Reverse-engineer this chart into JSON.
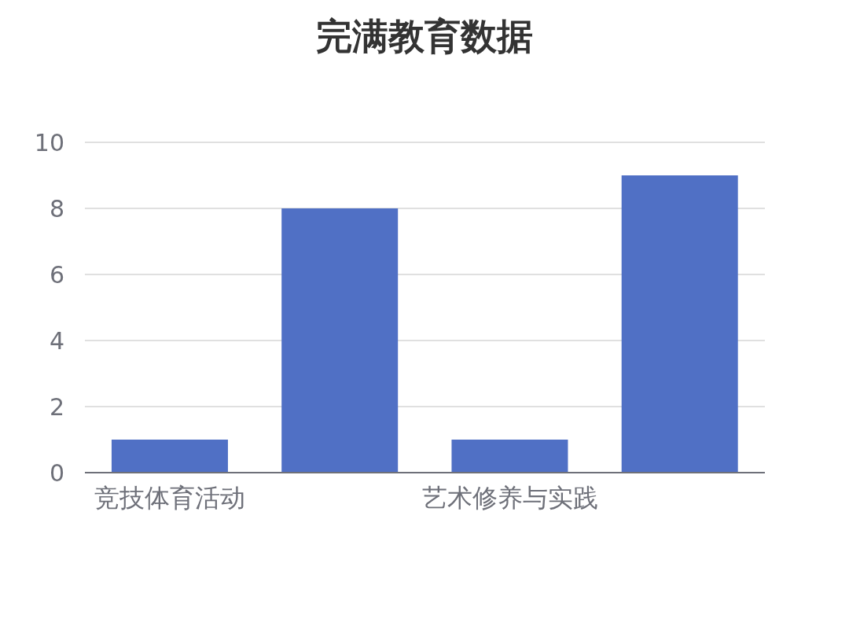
{
  "chart_data": {
    "type": "bar",
    "title": "完满教育数据",
    "categories": [
      "竞技体育活动",
      null,
      "艺术修养与实践",
      null
    ],
    "values": [
      1,
      8,
      1,
      9
    ],
    "color": "#5070c5",
    "ylim": [
      0,
      10
    ],
    "yticks": [
      0,
      2,
      4,
      6,
      8,
      10
    ],
    "grid": "y"
  }
}
